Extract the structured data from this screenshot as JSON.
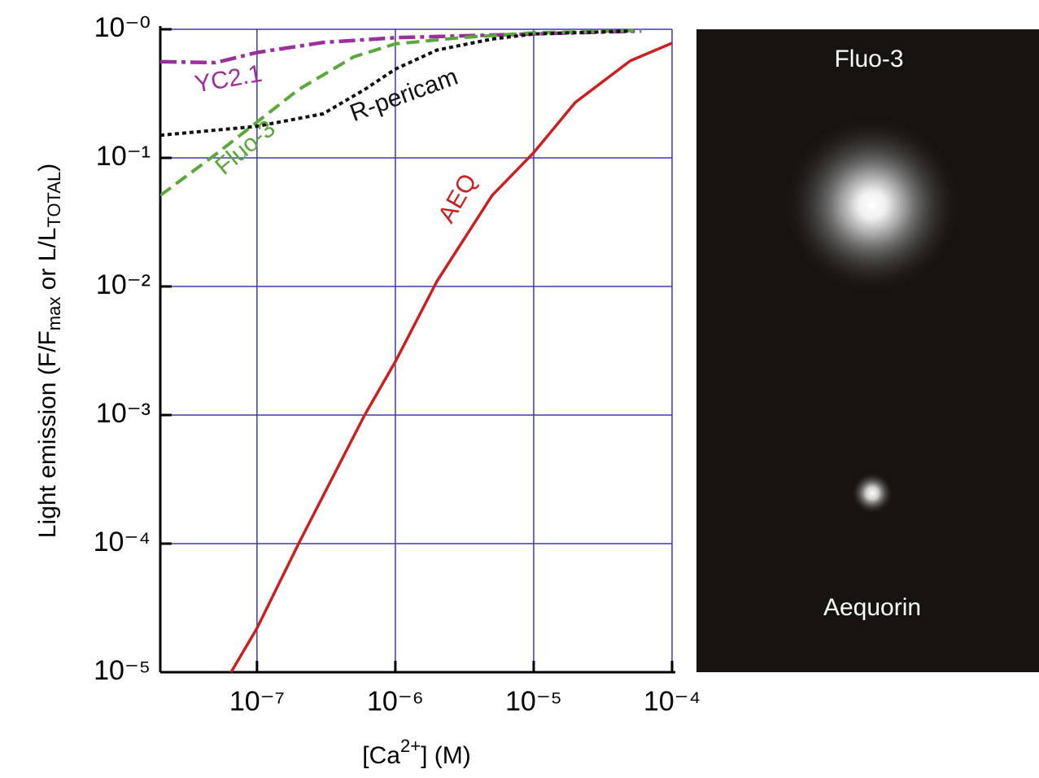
{
  "chart_data": {
    "type": "line",
    "xlabel": [
      "[Ca",
      "2+",
      "]  (M)"
    ],
    "ylabel": [
      "Light emission (F/F",
      "max",
      " or L/L",
      "TOTAL",
      ")"
    ],
    "xlog": true,
    "ylog": true,
    "grid": true,
    "xlim": [
      2e-08,
      0.0001
    ],
    "ylim": [
      1e-05,
      1
    ],
    "xticks": [
      {
        "value": 1e-07,
        "label": "10⁻⁷"
      },
      {
        "value": 1e-06,
        "label": "10⁻⁶"
      },
      {
        "value": 1e-05,
        "label": "10⁻⁵"
      },
      {
        "value": 0.0001,
        "label": "10⁻⁴"
      }
    ],
    "yticks": [
      {
        "value": 1e-05,
        "label": "10⁻⁵"
      },
      {
        "value": 0.0001,
        "label": "10⁻⁴"
      },
      {
        "value": 0.001,
        "label": "10⁻³"
      },
      {
        "value": 0.01,
        "label": "10⁻²"
      },
      {
        "value": 0.1,
        "label": "10⁻¹"
      },
      {
        "value": 1,
        "label": "10⁻⁰"
      }
    ],
    "series": [
      {
        "name": "YC2.1",
        "color": "#9b2f9b",
        "linestyle": "dashdot",
        "x": [
          2e-08,
          5e-08,
          1e-07,
          3e-07,
          1e-06,
          1e-05,
          6e-05
        ],
        "values": [
          0.56,
          0.55,
          0.66,
          0.79,
          0.86,
          0.92,
          0.97
        ]
      },
      {
        "name": "Fluo-3",
        "color": "#5aa83a",
        "linestyle": "dashed",
        "x": [
          2e-08,
          5e-08,
          1e-07,
          2e-07,
          5e-07,
          1e-06,
          3e-06,
          1e-05,
          6e-05
        ],
        "values": [
          0.051,
          0.106,
          0.19,
          0.34,
          0.61,
          0.77,
          0.86,
          0.94,
          0.98
        ]
      },
      {
        "name": "R-pericam",
        "color": "#111111",
        "linestyle": "dotted",
        "x": [
          2e-08,
          1e-07,
          3e-07,
          6e-07,
          1e-06,
          2e-06,
          5e-06,
          1e-05,
          5e-05
        ],
        "values": [
          0.15,
          0.176,
          0.22,
          0.34,
          0.49,
          0.69,
          0.84,
          0.92,
          0.97
        ]
      },
      {
        "name": "AEQ",
        "color": "#cc1f1f",
        "linestyle": "solid",
        "x": [
          6.5e-08,
          1e-07,
          2e-07,
          6e-07,
          1e-06,
          2e-06,
          5e-06,
          1e-05,
          2e-05,
          5e-05,
          0.0001
        ],
        "values": [
          1e-05,
          2.2e-05,
          0.0001,
          0.001,
          0.0026,
          0.011,
          0.051,
          0.11,
          0.27,
          0.57,
          0.78
        ]
      }
    ]
  },
  "panel": {
    "labels": [
      "Fluo-3",
      "Aequorin"
    ]
  }
}
